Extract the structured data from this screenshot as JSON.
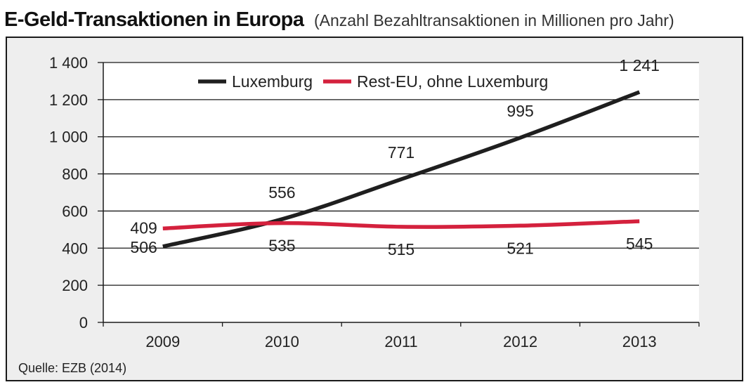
{
  "header": {
    "title": "E-Geld-Transaktionen in Europa",
    "subtitle": "(Anzahl Bezahltransaktionen in Millionen pro Jahr)"
  },
  "footer": {
    "source": "Quelle: EZB (2014)"
  },
  "colors": {
    "series_luxembourg": "#1f1f1f",
    "series_rest_eu": "#d4213d",
    "plot_background": "#ffffff",
    "frame_background": "#eeeeee",
    "gridline": "#1a1a1a"
  },
  "chart_data": {
    "type": "line",
    "title": "E-Geld-Transaktionen in Europa",
    "subtitle": "(Anzahl Bezahltransaktionen in Millionen pro Jahr)",
    "categories": [
      "2009",
      "2010",
      "2011",
      "2012",
      "2013"
    ],
    "ylim": [
      0,
      1400
    ],
    "yticks": [
      0,
      200,
      400,
      600,
      800,
      1000,
      1200,
      1400
    ],
    "ytick_labels": [
      "0",
      "200",
      "400",
      "600",
      "800",
      "1 000",
      "1 200",
      "1 400"
    ],
    "grid": true,
    "legend_position": "top",
    "series": [
      {
        "name": "Luxemburg",
        "values": [
          409,
          556,
          771,
          995,
          1241
        ],
        "labels": [
          "409",
          "556",
          "771",
          "995",
          "1 241"
        ]
      },
      {
        "name": "Rest-EU, ohne Luxemburg",
        "values": [
          506,
          535,
          515,
          521,
          545
        ],
        "labels": [
          "506",
          "535",
          "515",
          "521",
          "545"
        ]
      }
    ]
  }
}
